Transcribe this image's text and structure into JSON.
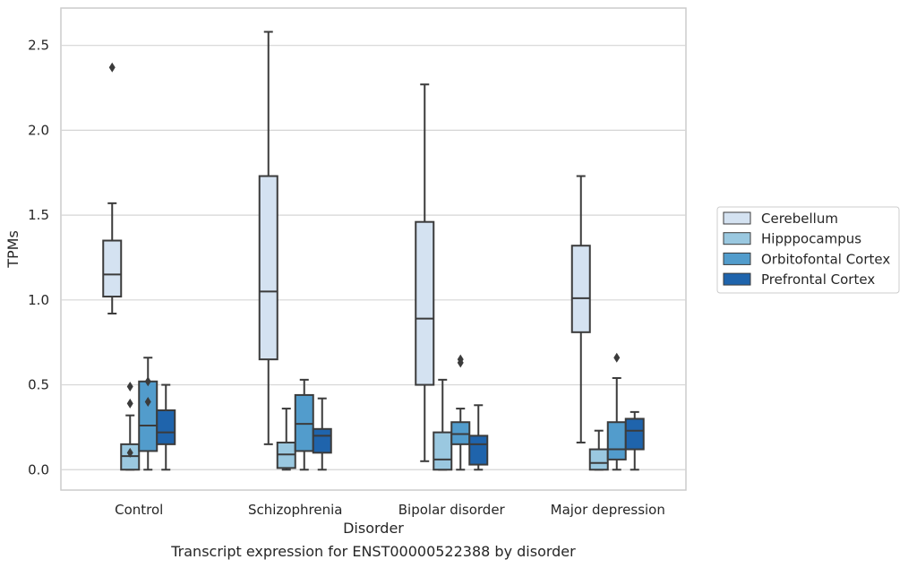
{
  "caption": "Transcript expression for ENST00000522388 by disorder",
  "chart_data": {
    "type": "box",
    "xlabel": "Disorder",
    "ylabel": "TPMs",
    "ylim": [
      -0.12,
      2.72
    ],
    "yticks": [
      "0.0",
      "0.5",
      "1.0",
      "1.5",
      "2.0",
      "2.5"
    ],
    "grid": "horizontal",
    "legend_position": "right",
    "categories": [
      "Control",
      "Schizophrenia",
      "Bipolar disorder",
      "Major depression"
    ],
    "series": [
      {
        "name": "Cerebellum",
        "color": "#d4e2f1",
        "boxes": [
          {
            "whisker_low": 0.92,
            "q1": 1.02,
            "median": 1.15,
            "q3": 1.35,
            "whisker_high": 1.57,
            "outliers": [
              2.37
            ]
          },
          {
            "whisker_low": 0.15,
            "q1": 0.65,
            "median": 1.05,
            "q3": 1.73,
            "whisker_high": 2.58,
            "outliers": []
          },
          {
            "whisker_low": 0.05,
            "q1": 0.5,
            "median": 0.89,
            "q3": 1.46,
            "whisker_high": 2.27,
            "outliers": []
          },
          {
            "whisker_low": 0.16,
            "q1": 0.81,
            "median": 1.01,
            "q3": 1.32,
            "whisker_high": 1.73,
            "outliers": []
          }
        ]
      },
      {
        "name": "Hipppocampus",
        "color": "#9ac8e0",
        "boxes": [
          {
            "whisker_low": 0.0,
            "q1": 0.0,
            "median": 0.08,
            "q3": 0.15,
            "whisker_high": 0.32,
            "outliers": [
              0.49,
              0.39,
              0.1
            ]
          },
          {
            "whisker_low": 0.0,
            "q1": 0.01,
            "median": 0.09,
            "q3": 0.16,
            "whisker_high": 0.36,
            "outliers": []
          },
          {
            "whisker_low": 0.0,
            "q1": 0.0,
            "median": 0.06,
            "q3": 0.22,
            "whisker_high": 0.53,
            "outliers": []
          },
          {
            "whisker_low": 0.0,
            "q1": 0.0,
            "median": 0.04,
            "q3": 0.12,
            "whisker_high": 0.23,
            "outliers": []
          }
        ]
      },
      {
        "name": "Orbitofontal Cortex",
        "color": "#529ccc",
        "boxes": [
          {
            "whisker_low": 0.0,
            "q1": 0.11,
            "median": 0.26,
            "q3": 0.52,
            "whisker_high": 0.66,
            "outliers": [
              0.52,
              0.4
            ]
          },
          {
            "whisker_low": 0.0,
            "q1": 0.11,
            "median": 0.27,
            "q3": 0.44,
            "whisker_high": 0.53,
            "outliers": []
          },
          {
            "whisker_low": 0.0,
            "q1": 0.15,
            "median": 0.21,
            "q3": 0.28,
            "whisker_high": 0.36,
            "outliers": [
              0.65,
              0.63
            ]
          },
          {
            "whisker_low": 0.0,
            "q1": 0.06,
            "median": 0.12,
            "q3": 0.28,
            "whisker_high": 0.54,
            "outliers": [
              0.66
            ]
          }
        ]
      },
      {
        "name": "Prefrontal Cortex",
        "color": "#1f64ac",
        "boxes": [
          {
            "whisker_low": 0.0,
            "q1": 0.15,
            "median": 0.22,
            "q3": 0.35,
            "whisker_high": 0.5,
            "outliers": []
          },
          {
            "whisker_low": 0.0,
            "q1": 0.1,
            "median": 0.2,
            "q3": 0.24,
            "whisker_high": 0.42,
            "outliers": []
          },
          {
            "whisker_low": 0.0,
            "q1": 0.03,
            "median": 0.15,
            "q3": 0.2,
            "whisker_high": 0.38,
            "outliers": []
          },
          {
            "whisker_low": 0.0,
            "q1": 0.12,
            "median": 0.23,
            "q3": 0.3,
            "whisker_high": 0.34,
            "outliers": []
          }
        ]
      }
    ]
  }
}
